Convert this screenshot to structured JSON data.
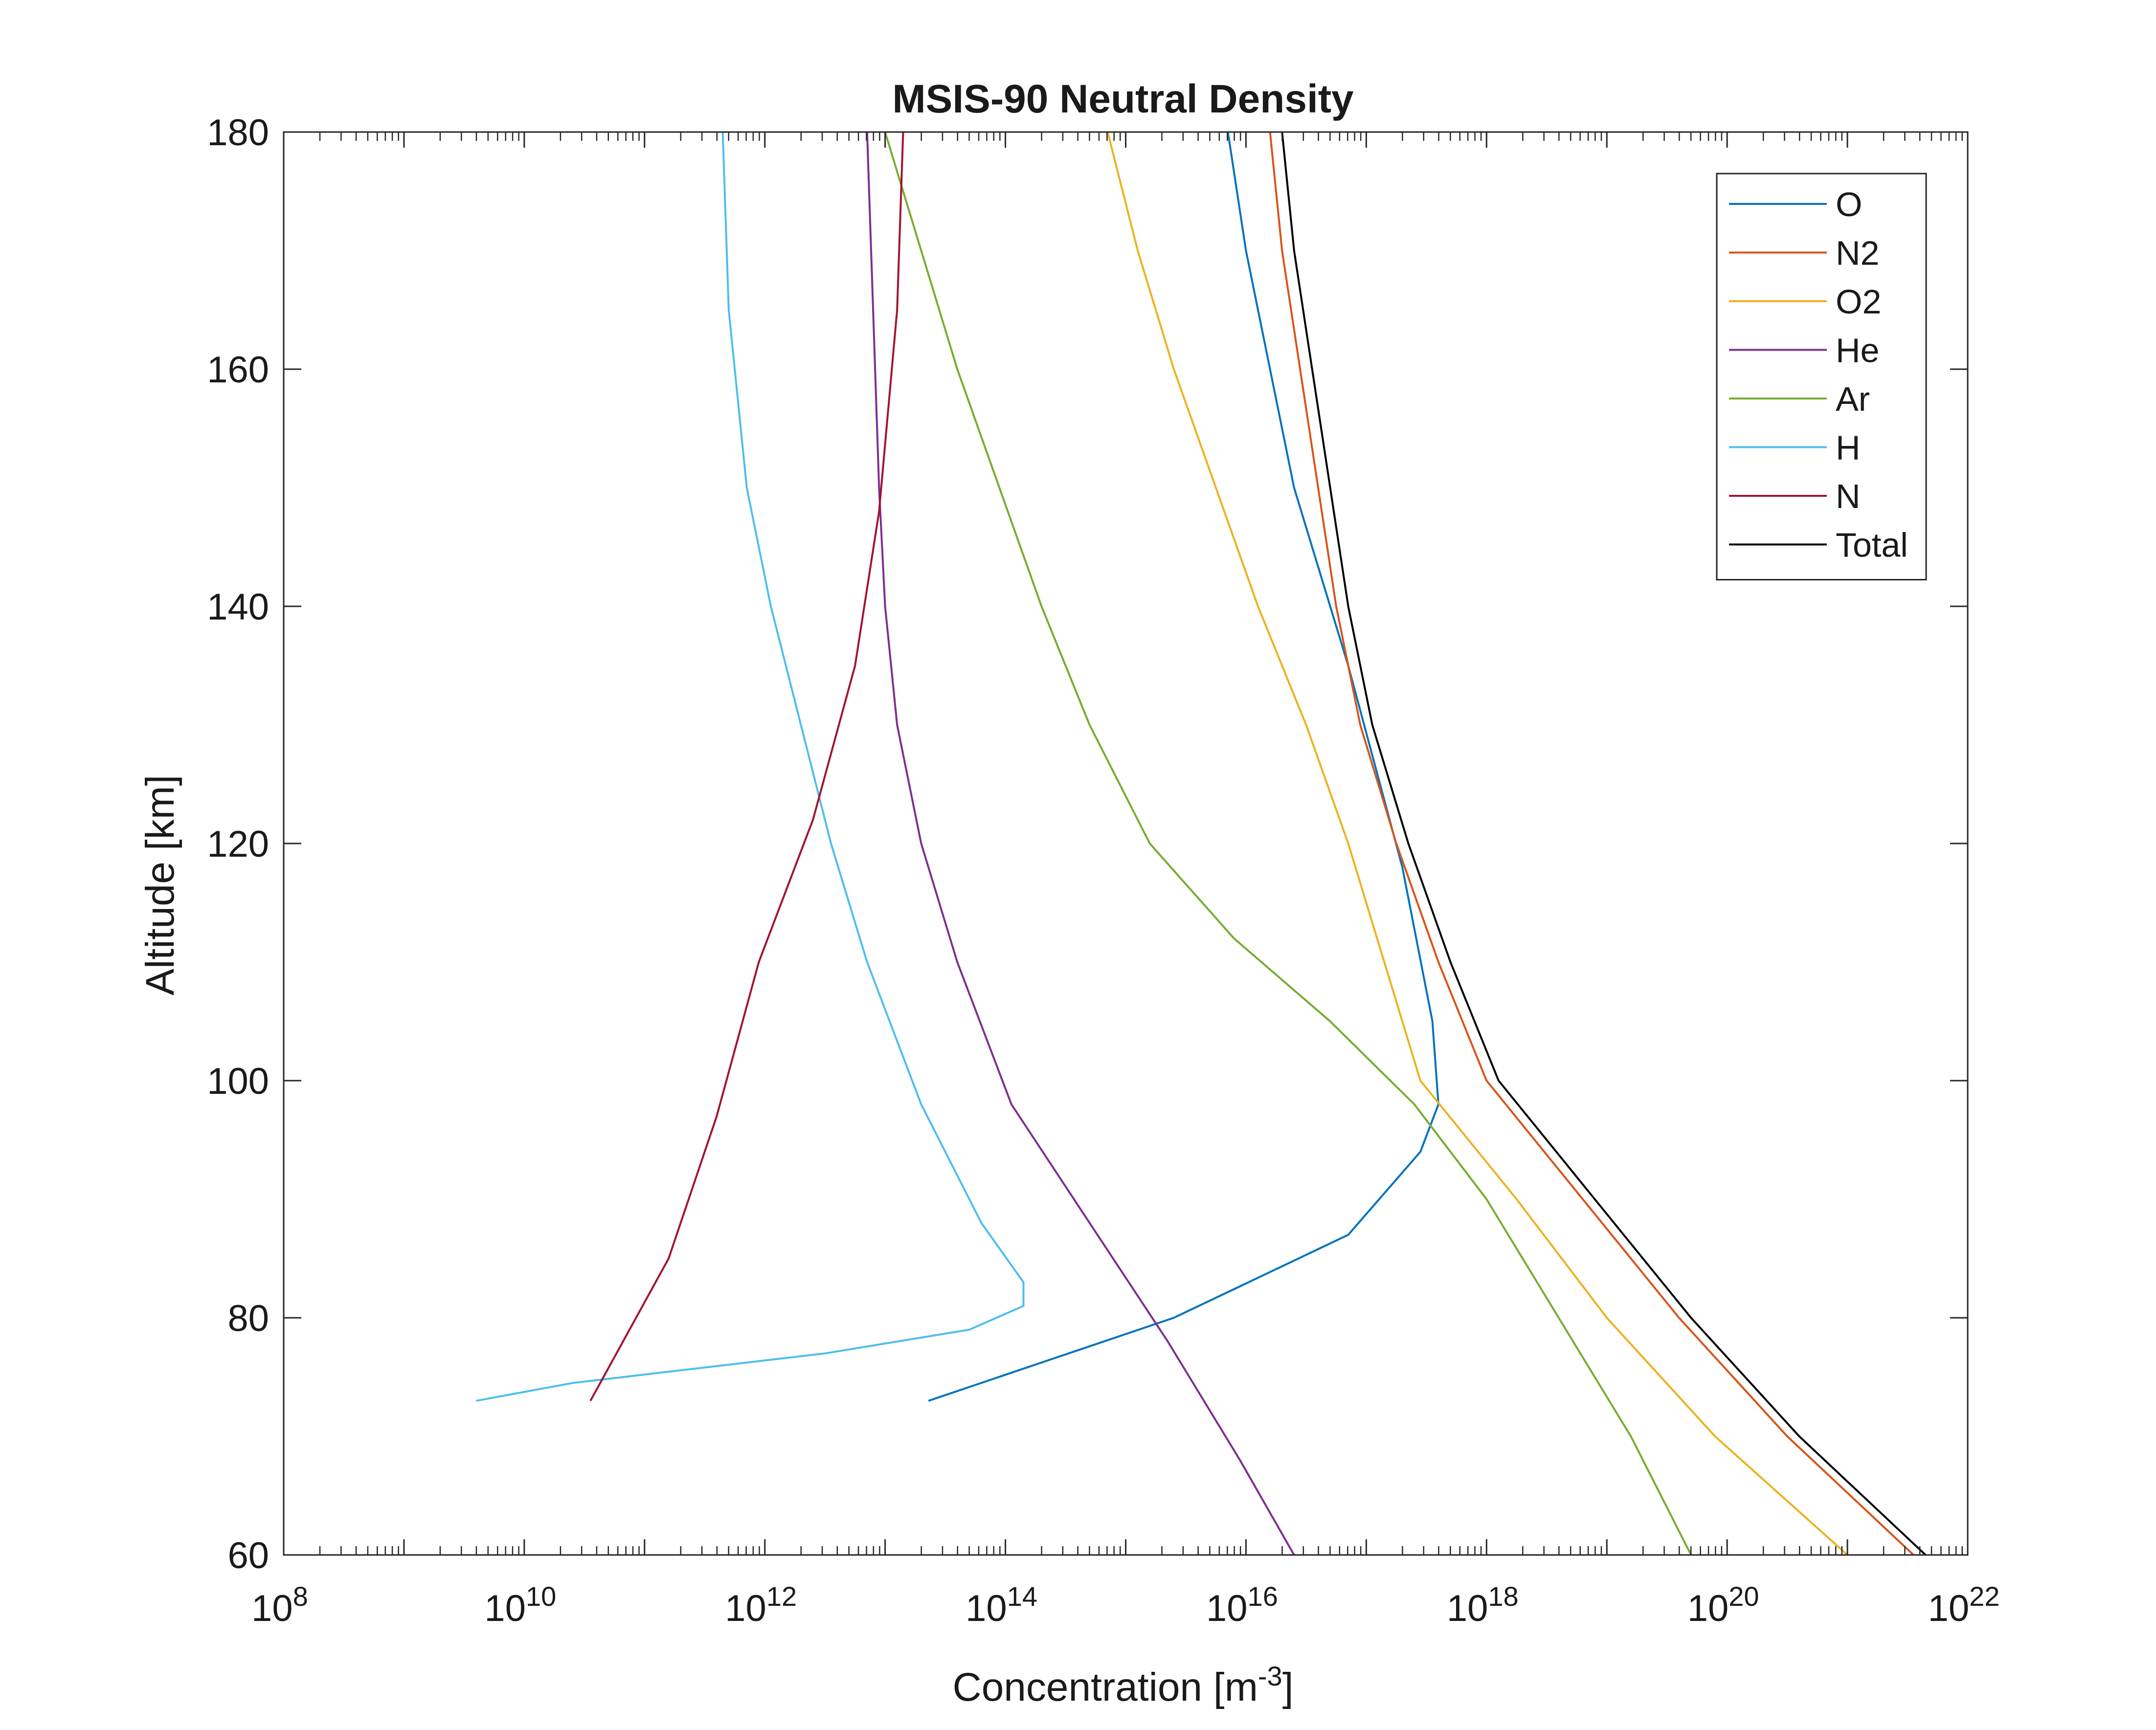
{
  "chart_data": {
    "type": "line",
    "title": "MSIS-90 Neutral Density",
    "xlabel": "Concentration [m",
    "xlabel_sup": "-3",
    "xlabel_end": "]",
    "ylabel": "Altitude [km]",
    "xscale": "log",
    "xlim_exp": [
      8,
      22
    ],
    "ylim": [
      60,
      180
    ],
    "xticks": [
      {
        "base": "10",
        "exp": "8"
      },
      {
        "base": "10",
        "exp": "10"
      },
      {
        "base": "10",
        "exp": "12"
      },
      {
        "base": "10",
        "exp": "14"
      },
      {
        "base": "10",
        "exp": "16"
      },
      {
        "base": "10",
        "exp": "18"
      },
      {
        "base": "10",
        "exp": "20"
      },
      {
        "base": "10",
        "exp": "22"
      }
    ],
    "yticks": [
      "60",
      "80",
      "100",
      "120",
      "140",
      "160",
      "180"
    ],
    "grid": false,
    "legend_position": "top-right",
    "series": [
      {
        "name": "O",
        "color": "#0072BD",
        "log10_x": [
          13.36,
          15.4,
          16.85,
          17.45,
          17.6,
          17.55,
          17.3,
          16.85,
          16.4,
          16.0,
          15.85
        ],
        "y": [
          73,
          80,
          87,
          94,
          98,
          105,
          118,
          135,
          150,
          170,
          180
        ]
      },
      {
        "name": "N2",
        "color": "#D95319",
        "log10_x": [
          21.55,
          20.5,
          19.6,
          18.8,
          18.0,
          17.6,
          17.25,
          16.95,
          16.75,
          16.6,
          16.45,
          16.3,
          16.2
        ],
        "y": [
          60,
          70,
          80,
          90,
          100,
          110,
          120,
          130,
          140,
          150,
          160,
          170,
          180
        ]
      },
      {
        "name": "O2",
        "color": "#EDB120",
        "log10_x": [
          21.0,
          19.9,
          19.0,
          18.25,
          17.45,
          17.15,
          16.85,
          16.5,
          16.1,
          15.75,
          15.4,
          15.1,
          14.85
        ],
        "y": [
          60,
          70,
          80,
          90,
          100,
          110,
          120,
          130,
          140,
          150,
          160,
          170,
          180
        ]
      },
      {
        "name": "He",
        "color": "#7E2F8E",
        "log10_x": [
          16.4,
          15.95,
          15.35,
          14.7,
          14.05,
          13.6,
          13.3,
          13.1,
          13.0,
          12.95,
          12.9,
          12.85
        ],
        "y": [
          60,
          68,
          78,
          88,
          98,
          110,
          120,
          130,
          140,
          150,
          165,
          180
        ]
      },
      {
        "name": "Ar",
        "color": "#77AC30",
        "log10_x": [
          19.7,
          19.2,
          18.6,
          18.0,
          17.4,
          16.7,
          15.9,
          15.2,
          14.7,
          14.3,
          13.95,
          13.6,
          13.3,
          13.0
        ],
        "y": [
          60,
          70,
          80,
          90,
          98,
          105,
          112,
          120,
          130,
          140,
          150,
          160,
          170,
          180
        ]
      },
      {
        "name": "H",
        "color": "#4DBEEE",
        "log10_x": [
          9.6,
          10.4,
          12.5,
          13.7,
          14.15,
          14.15,
          13.8,
          13.3,
          12.85,
          12.55,
          12.3,
          12.05,
          11.85,
          11.7,
          11.65
        ],
        "y": [
          73,
          74.5,
          77,
          79,
          81,
          83,
          88,
          98,
          110,
          120,
          130,
          140,
          150,
          165,
          180
        ]
      },
      {
        "name": "N",
        "color": "#A2142F",
        "log10_x": [
          10.55,
          11.2,
          11.6,
          11.95,
          12.4,
          12.75,
          12.95,
          13.1,
          13.15
        ],
        "y": [
          73,
          85,
          97,
          110,
          122,
          135,
          148,
          165,
          180
        ]
      },
      {
        "name": "Total",
        "color": "#000000",
        "log10_x": [
          21.65,
          20.6,
          19.7,
          18.9,
          18.1,
          17.7,
          17.35,
          17.05,
          16.85,
          16.7,
          16.55,
          16.4,
          16.3
        ],
        "y": [
          60,
          70,
          80,
          90,
          100,
          110,
          120,
          130,
          140,
          150,
          160,
          170,
          180
        ]
      }
    ]
  }
}
